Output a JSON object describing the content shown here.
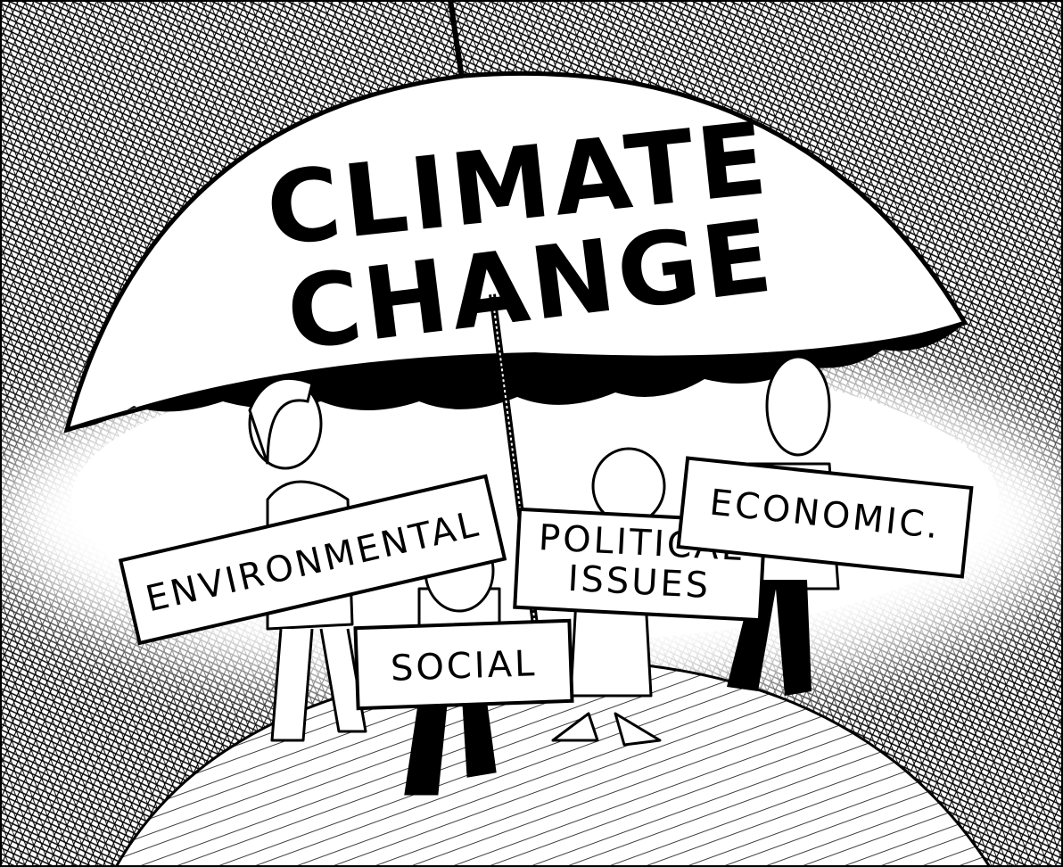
{
  "umbrella": {
    "lines": [
      "CLIMATE",
      "CHANGE"
    ]
  },
  "signs": [
    {
      "lines": [
        "ENVIRONMENTAL"
      ]
    },
    {
      "lines": [
        "SOCIAL"
      ]
    },
    {
      "lines": [
        "POLITICAL",
        "ISSUES"
      ]
    },
    {
      "lines": [
        "ECONOMIC."
      ]
    }
  ]
}
